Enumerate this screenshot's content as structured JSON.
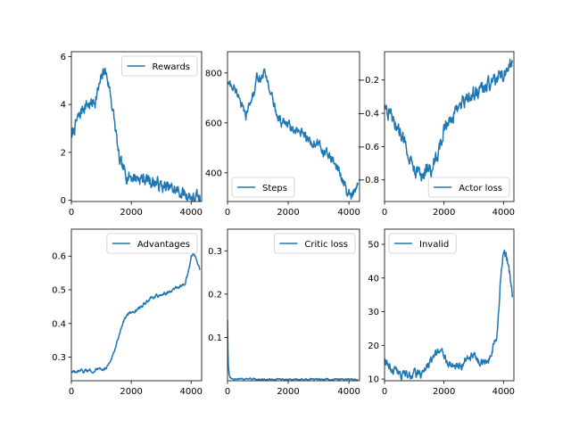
{
  "chart_data": [
    {
      "type": "line",
      "legend": "Rewards",
      "legend_loc": "upper right",
      "color": "#1f77b4",
      "xlim": [
        0,
        4350
      ],
      "ylim": [
        -0.05,
        6.2
      ],
      "xticks": [
        0,
        2000,
        4000
      ],
      "xtick_labels": [
        "0",
        "2000",
        "4000"
      ],
      "yticks": [
        0,
        2,
        4,
        6
      ],
      "ytick_labels": [
        "0",
        "2",
        "4",
        "6"
      ],
      "x": [
        0,
        150,
        300,
        400,
        500,
        650,
        800,
        900,
        1000,
        1100,
        1200,
        1300,
        1400,
        1500,
        1600,
        1800,
        2000,
        2200,
        2400,
        2600,
        2800,
        3000,
        3200,
        3400,
        3600,
        3800,
        3900,
        4000,
        4100,
        4200,
        4300
      ],
      "y": [
        2.6,
        3.2,
        3.6,
        3.9,
        4.0,
        4.0,
        4.2,
        4.6,
        5.0,
        5.5,
        5.1,
        4.5,
        3.6,
        2.7,
        1.6,
        1.1,
        1.0,
        0.95,
        0.9,
        0.85,
        0.75,
        0.6,
        0.5,
        0.45,
        0.35,
        0.25,
        0.22,
        0.15,
        0.05,
        0.1,
        -0.02
      ],
      "noise": 0.22
    },
    {
      "type": "line",
      "legend": "Steps",
      "legend_loc": "lower left",
      "color": "#1f77b4",
      "xlim": [
        0,
        4350
      ],
      "ylim": [
        285,
        885
      ],
      "xticks": [
        0,
        2000,
        4000
      ],
      "xtick_labels": [
        "0",
        "2000",
        "4000"
      ],
      "yticks": [
        400,
        600,
        800
      ],
      "ytick_labels": [
        "400",
        "600",
        "800"
      ],
      "x": [
        0,
        200,
        400,
        500,
        600,
        700,
        800,
        900,
        1000,
        1100,
        1200,
        1300,
        1400,
        1600,
        1800,
        2000,
        2200,
        2400,
        2600,
        2800,
        3000,
        3200,
        3400,
        3600,
        3700,
        3800,
        3900,
        4000,
        4100,
        4200,
        4300
      ],
      "y": [
        760,
        740,
        710,
        650,
        620,
        660,
        700,
        730,
        790,
        780,
        800,
        780,
        730,
        640,
        600,
        590,
        560,
        560,
        540,
        520,
        510,
        480,
        460,
        420,
        400,
        370,
        330,
        310,
        300,
        320,
        350
      ],
      "noise": 16
    },
    {
      "type": "line",
      "legend": "Actor loss",
      "legend_loc": "lower right",
      "color": "#1f77b4",
      "xlim": [
        0,
        4350
      ],
      "ylim": [
        -0.93,
        -0.03
      ],
      "xticks": [
        0,
        2000,
        4000
      ],
      "xtick_labels": [
        "0",
        "2000",
        "4000"
      ],
      "yticks": [
        -0.8,
        -0.6,
        -0.4,
        -0.2
      ],
      "ytick_labels": [
        "−0.8",
        "−0.6",
        "−0.4",
        "−0.2"
      ],
      "x": [
        0,
        200,
        400,
        600,
        800,
        1000,
        1200,
        1300,
        1400,
        1600,
        1800,
        2000,
        2200,
        2400,
        2600,
        2800,
        3000,
        3200,
        3400,
        3600,
        3800,
        4000,
        4100,
        4200,
        4300
      ],
      "y": [
        -0.35,
        -0.42,
        -0.48,
        -0.55,
        -0.62,
        -0.72,
        -0.78,
        -0.8,
        -0.75,
        -0.72,
        -0.65,
        -0.5,
        -0.42,
        -0.4,
        -0.35,
        -0.32,
        -0.28,
        -0.26,
        -0.24,
        -0.22,
        -0.2,
        -0.16,
        -0.12,
        -0.1,
        -0.08
      ],
      "noise": 0.035
    },
    {
      "type": "line",
      "legend": "Advantages",
      "legend_loc": "upper right",
      "color": "#1f77b4",
      "xlim": [
        0,
        4350
      ],
      "ylim": [
        0.23,
        0.68
      ],
      "xticks": [
        0,
        2000,
        4000
      ],
      "xtick_labels": [
        "0",
        "2000",
        "4000"
      ],
      "yticks": [
        0.3,
        0.4,
        0.5,
        0.6
      ],
      "ytick_labels": [
        "0.3",
        "0.4",
        "0.5",
        "0.6"
      ],
      "x": [
        0,
        200,
        400,
        600,
        800,
        1000,
        1200,
        1300,
        1400,
        1500,
        1600,
        1700,
        1800,
        1900,
        2000,
        2200,
        2400,
        2600,
        2800,
        3000,
        3200,
        3400,
        3600,
        3800,
        3900,
        4000,
        4100,
        4200,
        4300
      ],
      "y": [
        0.255,
        0.255,
        0.258,
        0.26,
        0.262,
        0.265,
        0.27,
        0.285,
        0.31,
        0.34,
        0.37,
        0.395,
        0.415,
        0.43,
        0.435,
        0.44,
        0.455,
        0.47,
        0.48,
        0.485,
        0.49,
        0.5,
        0.51,
        0.52,
        0.55,
        0.6,
        0.61,
        0.58,
        0.56
      ],
      "noise": 0.004
    },
    {
      "type": "line",
      "legend": "Critic loss",
      "legend_loc": "upper right",
      "color": "#1f77b4",
      "xlim": [
        0,
        4350
      ],
      "ylim": [
        0.0,
        0.35
      ],
      "xticks": [
        0,
        2000,
        4000
      ],
      "xtick_labels": [
        "0",
        "2000",
        "4000"
      ],
      "yticks": [
        0.1,
        0.2,
        0.3
      ],
      "ytick_labels": [
        "0.1",
        "0.2",
        "0.3"
      ],
      "x": [
        0,
        20,
        60,
        120,
        300,
        600,
        1000,
        1500,
        2000,
        2500,
        3000,
        3500,
        4000,
        4300
      ],
      "y": [
        0.14,
        0.04,
        0.012,
        0.006,
        0.004,
        0.004,
        0.003,
        0.004,
        0.003,
        0.003,
        0.004,
        0.003,
        0.003,
        0.003
      ],
      "noise": 0.0015
    },
    {
      "type": "line",
      "legend": "Invalid",
      "legend_loc": "upper left",
      "color": "#1f77b4",
      "xlim": [
        0,
        4350
      ],
      "ylim": [
        9.5,
        54.5
      ],
      "xticks": [
        0,
        2000,
        4000
      ],
      "xtick_labels": [
        "0",
        "2000",
        "4000"
      ],
      "yticks": [
        10,
        20,
        30,
        40,
        50
      ],
      "ytick_labels": [
        "10",
        "20",
        "30",
        "40",
        "50"
      ],
      "x": [
        0,
        200,
        400,
        600,
        800,
        1000,
        1200,
        1400,
        1600,
        1800,
        2000,
        2200,
        2400,
        2600,
        2800,
        3000,
        3200,
        3400,
        3600,
        3700,
        3800,
        3900,
        4000,
        4100,
        4200,
        4300
      ],
      "y": [
        16,
        14,
        12.5,
        11.5,
        11,
        11.5,
        12,
        13,
        16,
        18,
        17,
        15,
        14,
        14.5,
        16,
        17,
        15,
        14.5,
        18,
        22,
        24,
        40,
        48,
        47,
        42,
        36
      ],
      "noise": 1.1
    }
  ]
}
